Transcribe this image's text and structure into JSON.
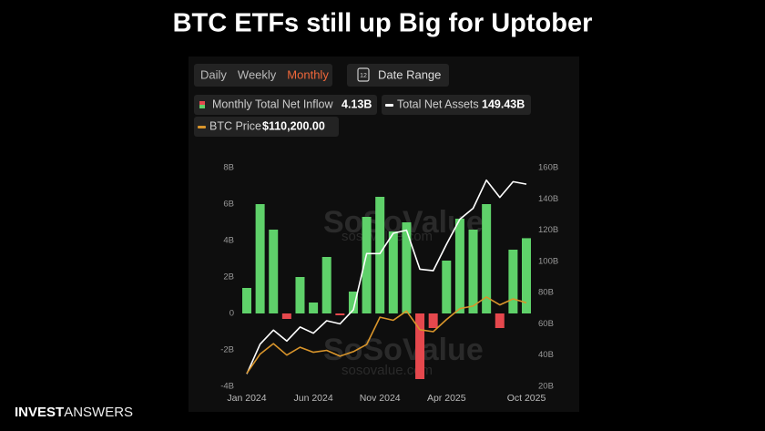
{
  "title": "BTC ETFs still up Big for Uptober",
  "tabs": [
    "Daily",
    "Weekly",
    "Monthly"
  ],
  "active_tab": 2,
  "date_range": "Date Range",
  "date_icon": "12",
  "brand": {
    "bold": "INVEST",
    "light": "ANSWERS"
  },
  "chart_data": {
    "type": "bar",
    "watermark": {
      "name": "SoSoValue",
      "url": "sosovalue.com"
    },
    "categories": [
      "Jan 2024",
      null,
      null,
      null,
      null,
      "Jun 2024",
      null,
      null,
      null,
      null,
      "Nov 2024",
      null,
      null,
      null,
      null,
      "Apr 2025",
      null,
      null,
      null,
      null,
      null,
      "Oct 2025"
    ],
    "ylim": [
      -4,
      8
    ],
    "yticks": [
      {
        "value": -4,
        "label": "-4B"
      },
      {
        "value": -2,
        "label": "-2B"
      },
      0,
      {
        "value": 2,
        "label": "2B"
      },
      {
        "value": 4,
        "label": "4B"
      },
      {
        "value": 6,
        "label": "6B"
      },
      {
        "value": 8,
        "label": "8B"
      }
    ],
    "y2lim": [
      20,
      160
    ],
    "y2ticks": [
      {
        "value": 20,
        "label": "20B"
      },
      {
        "value": 40,
        "label": "40B"
      },
      {
        "value": 60,
        "label": "60B"
      },
      {
        "value": 80,
        "label": "80B"
      },
      {
        "value": 100,
        "label": "100B"
      },
      {
        "value": 120,
        "label": "120B"
      },
      {
        "value": 140,
        "label": "140B"
      },
      {
        "value": 160,
        "label": "160B"
      }
    ],
    "y3lim": [
      30000,
      240000
    ],
    "series": [
      {
        "name": "Monthly Total Net Inflow",
        "latest_label": "4.13B",
        "type": "bar",
        "color": "#5fd16a",
        "negative_color": "#e5484d",
        "values": [
          1.4,
          6.0,
          4.6,
          -0.3,
          2.0,
          0.6,
          3.1,
          -0.1,
          1.2,
          5.3,
          6.4,
          4.5,
          5.0,
          -3.6,
          -0.8,
          2.9,
          5.2,
          4.6,
          6.0,
          -0.8,
          3.5,
          4.13
        ]
      },
      {
        "name": "Total Net Assets",
        "latest_label": "149.43B",
        "type": "line",
        "axis": "y2",
        "color": "#ffffff",
        "values": [
          28,
          47,
          56,
          49,
          58,
          54,
          62,
          60,
          69,
          105,
          105,
          118,
          120,
          95,
          94,
          111,
          127,
          134,
          152,
          141,
          151,
          149.43
        ]
      },
      {
        "name": "BTC Price",
        "latest_label": "$110,200.00",
        "type": "line",
        "axis": "y3",
        "color": "#d9952b",
        "values": [
          42500,
          61000,
          71000,
          60000,
          67500,
          62700,
          64600,
          59000,
          63300,
          70200,
          96400,
          93400,
          102400,
          84400,
          82500,
          94200,
          104600,
          107100,
          115800,
          108200,
          114000,
          110200
        ]
      }
    ]
  }
}
